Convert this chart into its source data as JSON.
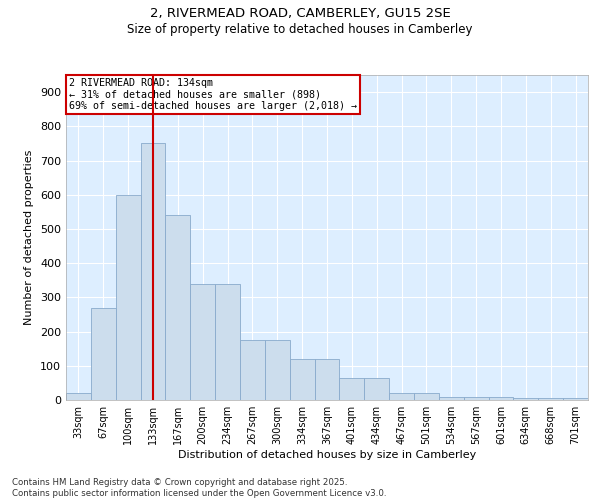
{
  "title1": "2, RIVERMEAD ROAD, CAMBERLEY, GU15 2SE",
  "title2": "Size of property relative to detached houses in Camberley",
  "xlabel": "Distribution of detached houses by size in Camberley",
  "ylabel": "Number of detached properties",
  "bar_color": "#ccdded",
  "bar_edge_color": "#88aacc",
  "bg_color": "#ddeeff",
  "grid_color": "#ffffff",
  "vline_color": "#cc0000",
  "vline_x": 3,
  "annotation_text": "2 RIVERMEAD ROAD: 134sqm\n← 31% of detached houses are smaller (898)\n69% of semi-detached houses are larger (2,018) →",
  "annotation_box_color": "#cc0000",
  "categories": [
    "33sqm",
    "67sqm",
    "100sqm",
    "133sqm",
    "167sqm",
    "200sqm",
    "234sqm",
    "267sqm",
    "300sqm",
    "334sqm",
    "367sqm",
    "401sqm",
    "434sqm",
    "467sqm",
    "501sqm",
    "534sqm",
    "567sqm",
    "601sqm",
    "634sqm",
    "668sqm",
    "701sqm"
  ],
  "values": [
    20,
    270,
    600,
    750,
    540,
    340,
    340,
    175,
    175,
    120,
    120,
    65,
    65,
    20,
    20,
    10,
    10,
    10,
    5,
    5,
    5
  ],
  "ylim": [
    0,
    950
  ],
  "yticks": [
    0,
    100,
    200,
    300,
    400,
    500,
    600,
    700,
    800,
    900
  ],
  "footnote": "Contains HM Land Registry data © Crown copyright and database right 2025.\nContains public sector information licensed under the Open Government Licence v3.0."
}
